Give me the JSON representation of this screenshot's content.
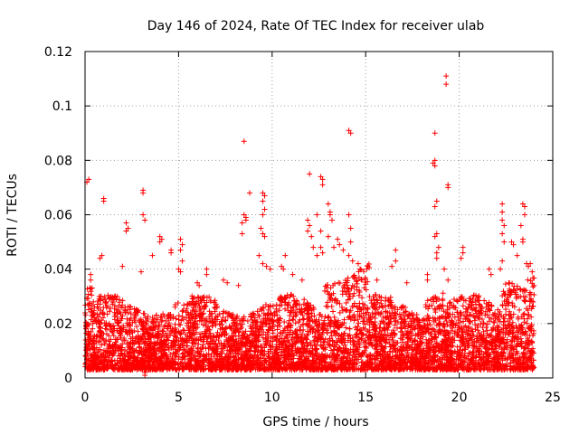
{
  "chart_data": {
    "type": "scatter",
    "title": "Day 146 of 2024, Rate Of TEC Index for receiver ulab",
    "xlabel": "GPS time / hours",
    "ylabel": "ROTI / TECUs",
    "xlim": [
      0,
      25
    ],
    "ylim": [
      0,
      0.12
    ],
    "x_ticks": [
      "0",
      "5",
      "10",
      "15",
      "20",
      "25"
    ],
    "y_ticks": [
      "0",
      "0.02",
      "0.04",
      "0.06",
      "0.08",
      "0.1",
      "0.12"
    ],
    "x_tick_values": [
      0,
      5,
      10,
      15,
      20,
      25
    ],
    "y_tick_values": [
      0,
      0.02,
      0.04,
      0.06,
      0.08,
      0.1,
      0.12
    ],
    "grid": true,
    "marker": "+",
    "color": "#ff0000",
    "series": [
      {
        "name": "ROTI",
        "description_of_bulk": "dense band of points between about 0.003 and 0.03 TECU across 0-24 h, rising to about 0.045 near 13-15 h and 22-24 h",
        "points": [
          [
            0.1,
            0.072
          ],
          [
            0.2,
            0.073
          ],
          [
            0.3,
            0.038
          ],
          [
            0.3,
            0.036
          ],
          [
            1.0,
            0.066
          ],
          [
            1.0,
            0.065
          ],
          [
            0.8,
            0.044
          ],
          [
            0.9,
            0.045
          ],
          [
            2.2,
            0.057
          ],
          [
            2.3,
            0.055
          ],
          [
            2.2,
            0.054
          ],
          [
            2.0,
            0.041
          ],
          [
            3.1,
            0.069
          ],
          [
            3.1,
            0.068
          ],
          [
            3.1,
            0.06
          ],
          [
            3.2,
            0.058
          ],
          [
            3.0,
            0.039
          ],
          [
            3.2,
            0.002
          ],
          [
            3.2,
            0.001
          ],
          [
            3.6,
            0.045
          ],
          [
            4.0,
            0.052
          ],
          [
            4.1,
            0.051
          ],
          [
            4.0,
            0.05
          ],
          [
            4.6,
            0.047
          ],
          [
            4.6,
            0.046
          ],
          [
            5.1,
            0.051
          ],
          [
            5.2,
            0.049
          ],
          [
            5.1,
            0.047
          ],
          [
            5.2,
            0.043
          ],
          [
            5.0,
            0.04
          ],
          [
            5.1,
            0.039
          ],
          [
            6.0,
            0.035
          ],
          [
            6.1,
            0.034
          ],
          [
            6.5,
            0.04
          ],
          [
            6.5,
            0.038
          ],
          [
            7.4,
            0.036
          ],
          [
            7.6,
            0.035
          ],
          [
            8.5,
            0.087
          ],
          [
            8.5,
            0.06
          ],
          [
            8.6,
            0.059
          ],
          [
            8.6,
            0.058
          ],
          [
            8.4,
            0.057
          ],
          [
            8.4,
            0.053
          ],
          [
            8.2,
            0.034
          ],
          [
            8.8,
            0.068
          ],
          [
            9.5,
            0.068
          ],
          [
            9.6,
            0.067
          ],
          [
            9.5,
            0.065
          ],
          [
            9.6,
            0.062
          ],
          [
            9.5,
            0.06
          ],
          [
            9.4,
            0.055
          ],
          [
            9.5,
            0.053
          ],
          [
            9.6,
            0.052
          ],
          [
            9.3,
            0.045
          ],
          [
            9.5,
            0.042
          ],
          [
            9.7,
            0.041
          ],
          [
            9.9,
            0.04
          ],
          [
            10.5,
            0.041
          ],
          [
            10.6,
            0.04
          ],
          [
            10.7,
            0.045
          ],
          [
            11.1,
            0.038
          ],
          [
            11.6,
            0.036
          ],
          [
            12.0,
            0.075
          ],
          [
            11.9,
            0.058
          ],
          [
            12.0,
            0.056
          ],
          [
            11.9,
            0.054
          ],
          [
            12.1,
            0.052
          ],
          [
            12.2,
            0.048
          ],
          [
            12.4,
            0.045
          ],
          [
            12.6,
            0.074
          ],
          [
            12.7,
            0.073
          ],
          [
            12.7,
            0.071
          ],
          [
            12.4,
            0.06
          ],
          [
            12.6,
            0.054
          ],
          [
            12.6,
            0.048
          ],
          [
            12.7,
            0.046
          ],
          [
            13.0,
            0.064
          ],
          [
            13.1,
            0.061
          ],
          [
            13.1,
            0.06
          ],
          [
            13.2,
            0.058
          ],
          [
            13.0,
            0.052
          ],
          [
            13.3,
            0.048
          ],
          [
            13.5,
            0.051
          ],
          [
            13.6,
            0.049
          ],
          [
            13.8,
            0.047
          ],
          [
            14.1,
            0.091
          ],
          [
            14.2,
            0.09
          ],
          [
            14.1,
            0.06
          ],
          [
            14.2,
            0.055
          ],
          [
            14.2,
            0.05
          ],
          [
            14.1,
            0.045
          ],
          [
            14.3,
            0.043
          ],
          [
            14.6,
            0.042
          ],
          [
            14.7,
            0.04
          ],
          [
            15.6,
            0.036
          ],
          [
            16.4,
            0.041
          ],
          [
            16.6,
            0.047
          ],
          [
            16.6,
            0.043
          ],
          [
            17.2,
            0.035
          ],
          [
            18.3,
            0.038
          ],
          [
            18.3,
            0.036
          ],
          [
            18.7,
            0.09
          ],
          [
            18.7,
            0.08
          ],
          [
            18.6,
            0.079
          ],
          [
            18.7,
            0.078
          ],
          [
            18.8,
            0.065
          ],
          [
            18.7,
            0.063
          ],
          [
            18.8,
            0.053
          ],
          [
            18.7,
            0.052
          ],
          [
            18.9,
            0.048
          ],
          [
            18.8,
            0.046
          ],
          [
            18.8,
            0.044
          ],
          [
            19.3,
            0.111
          ],
          [
            19.3,
            0.108
          ],
          [
            19.4,
            0.071
          ],
          [
            19.4,
            0.07
          ],
          [
            19.2,
            0.04
          ],
          [
            19.4,
            0.036
          ],
          [
            20.2,
            0.048
          ],
          [
            20.2,
            0.046
          ],
          [
            20.1,
            0.044
          ],
          [
            21.6,
            0.04
          ],
          [
            21.7,
            0.038
          ],
          [
            22.3,
            0.064
          ],
          [
            22.3,
            0.061
          ],
          [
            22.3,
            0.058
          ],
          [
            22.4,
            0.056
          ],
          [
            22.3,
            0.053
          ],
          [
            22.4,
            0.05
          ],
          [
            22.3,
            0.043
          ],
          [
            22.2,
            0.04
          ],
          [
            22.8,
            0.05
          ],
          [
            22.9,
            0.049
          ],
          [
            23.1,
            0.045
          ],
          [
            23.4,
            0.064
          ],
          [
            23.5,
            0.063
          ],
          [
            23.5,
            0.06
          ],
          [
            23.3,
            0.056
          ],
          [
            23.4,
            0.051
          ],
          [
            23.4,
            0.05
          ],
          [
            23.6,
            0.042
          ],
          [
            23.7,
            0.041
          ],
          [
            23.8,
            0.042
          ],
          [
            23.9,
            0.039
          ]
        ]
      }
    ]
  }
}
